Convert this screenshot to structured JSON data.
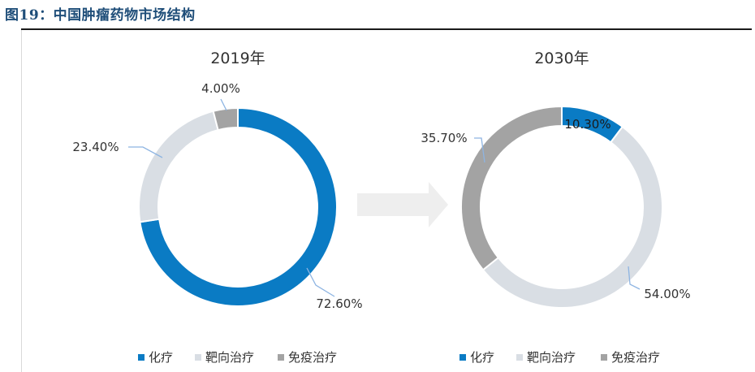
{
  "figure": {
    "title": "图19：中国肿瘤药物市场结构"
  },
  "colors": {
    "chemo": "#0a7bc4",
    "targeted": "#d9dee4",
    "immuno": "#a3a3a3",
    "arrow": "#eeeeee",
    "leader": "#8db4e2"
  },
  "legend": [
    "化疗",
    "靶向治疗",
    "免疫治疗"
  ],
  "chart_data": [
    {
      "type": "pie",
      "title": "2019年",
      "categories": [
        "化疗",
        "靶向治疗",
        "免疫治疗"
      ],
      "values": [
        72.6,
        23.4,
        4.0
      ],
      "labels": [
        "72.60%",
        "23.40%",
        "4.00%"
      ],
      "legend_position": "bottom"
    },
    {
      "type": "pie",
      "title": "2030年",
      "categories": [
        "化疗",
        "靶向治疗",
        "免疫治疗"
      ],
      "values": [
        10.3,
        54.0,
        35.7
      ],
      "labels": [
        "10.30%",
        "54.00%",
        "35.70%"
      ],
      "legend_position": "bottom"
    }
  ]
}
